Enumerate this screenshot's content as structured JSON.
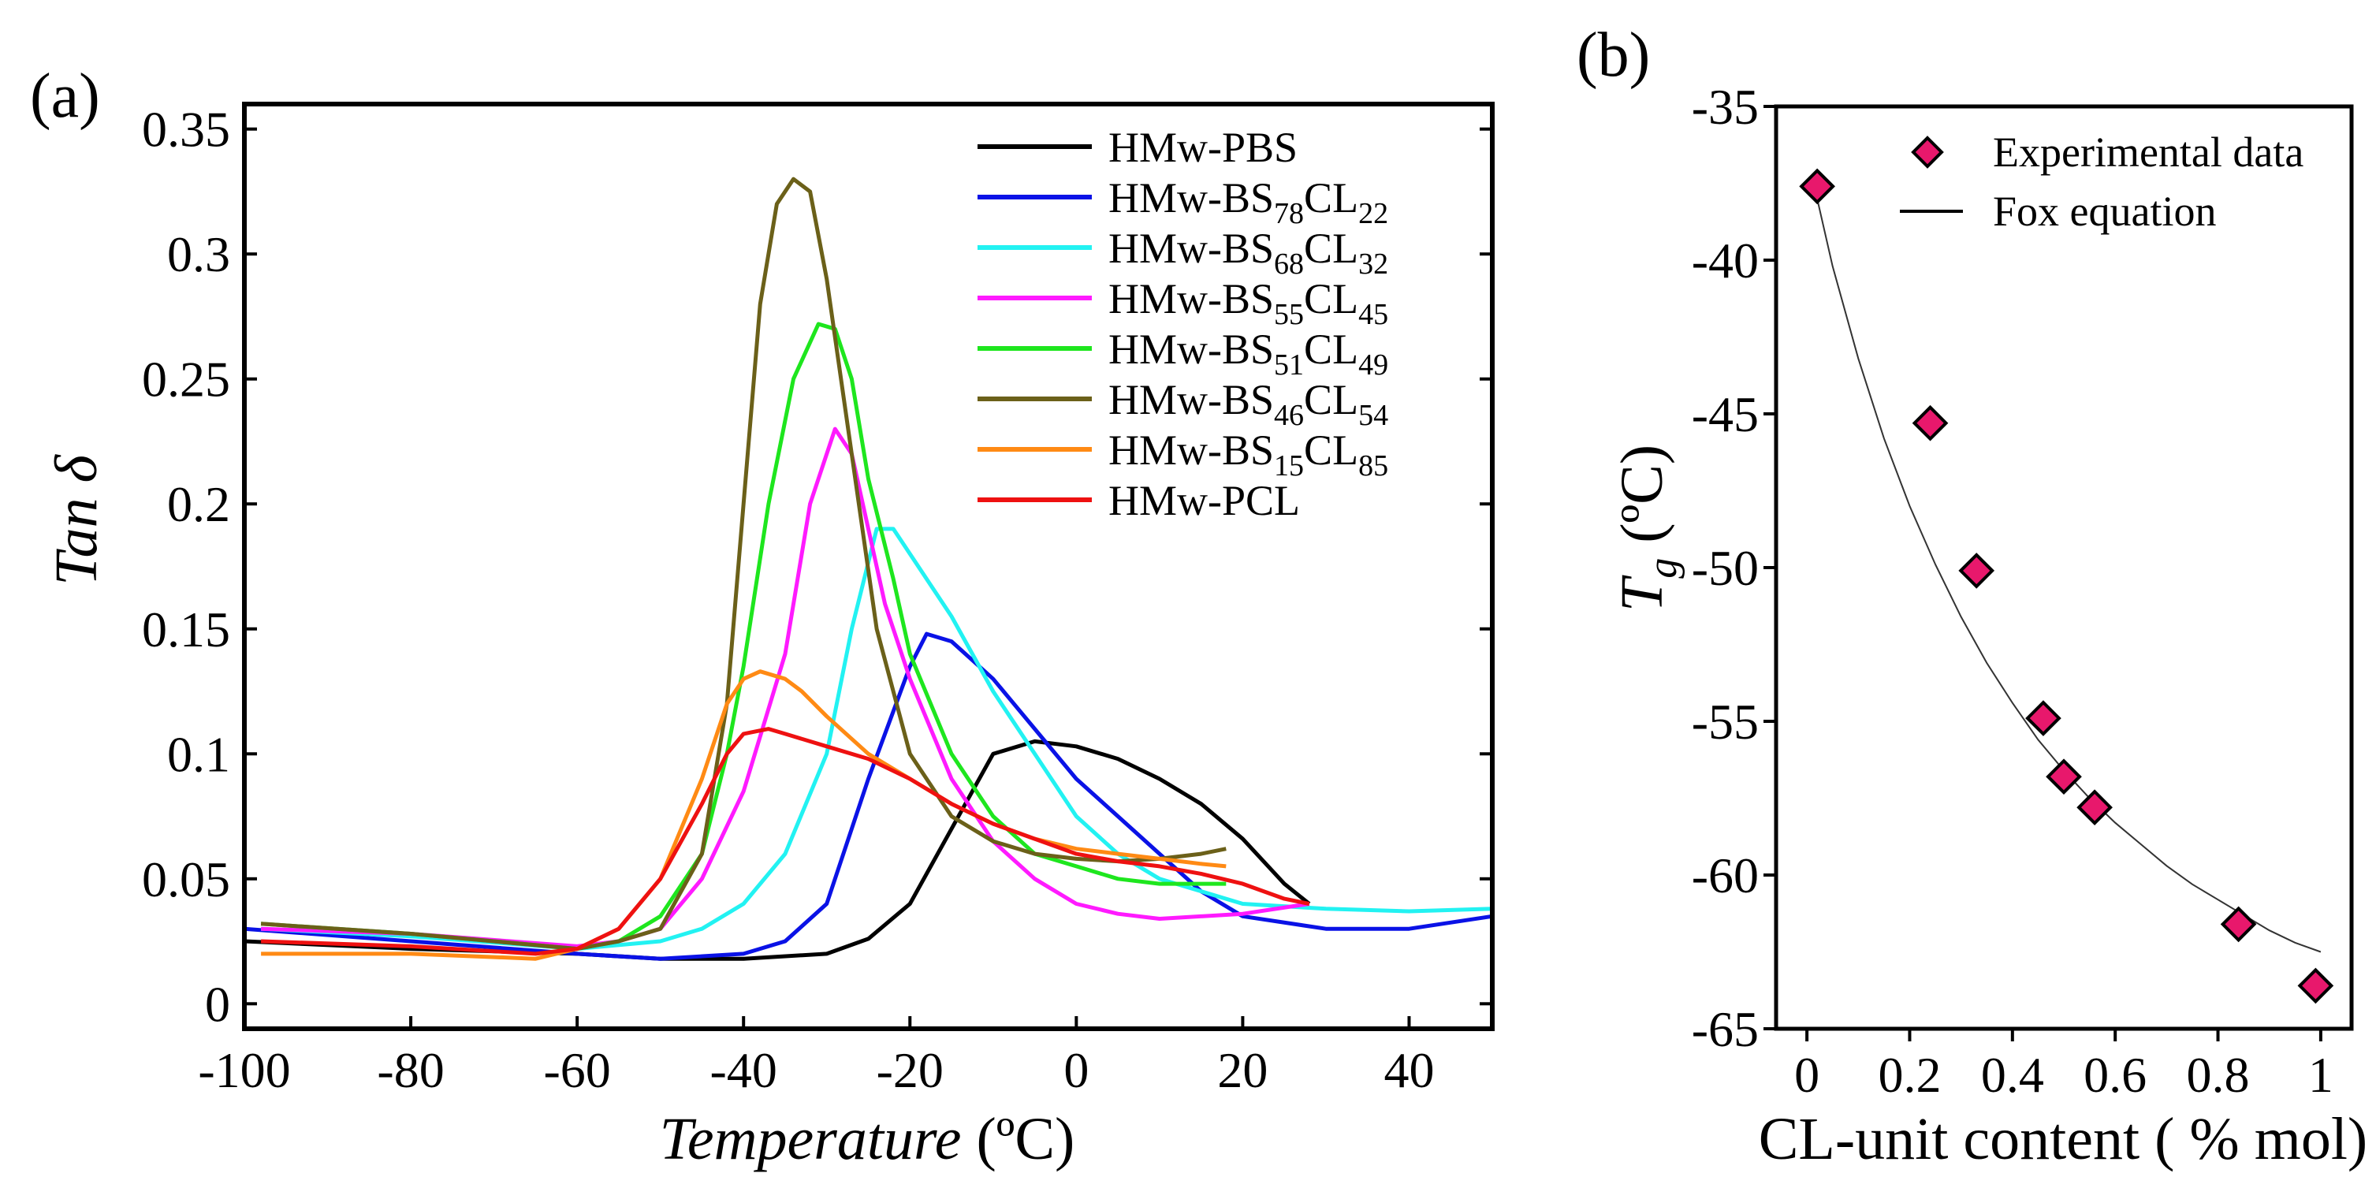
{
  "panel_a": {
    "label": "(a)",
    "xlabel_italic": "Temperature",
    "xlabel_unit": " (ºC)",
    "ylabel": "Tan δ"
  },
  "panel_b": {
    "label": "(b)",
    "xlabel": "CL-unit content ( % mol)",
    "ylabel_main": "T",
    "ylabel_sub": "g",
    "ylabel_unit": " (ºC)"
  },
  "colors": {
    "HMw-PBS": "#000000",
    "HMw-BS78CL22": "#0a12e6",
    "HMw-BS68CL32": "#22f2f2",
    "HMw-BS55CL45": "#ff1aff",
    "HMw-BS51CL49": "#1ee61e",
    "HMw-BS46CL54": "#6b6019",
    "HMw-BS15CL85": "#ff8a14",
    "HMw-PCL": "#ee1111",
    "marker_fill": "#e8186c"
  },
  "chart_data": [
    {
      "type": "line",
      "xlim": [
        -100,
        50
      ],
      "ylim": [
        -0.01,
        0.36
      ],
      "x_ticks": [
        "-100",
        "-80",
        "-60",
        "-40",
        "-20",
        "0",
        "20",
        "40"
      ],
      "x_tick_values": [
        -100,
        -80,
        -60,
        -40,
        -20,
        0,
        20,
        40
      ],
      "y_ticks": [
        "0",
        "0.05",
        "0.1",
        "0.15",
        "0.2",
        "0.25",
        "0.3",
        "0.35"
      ],
      "y_tick_values": [
        0,
        0.05,
        0.1,
        0.15,
        0.2,
        0.25,
        0.3,
        0.35
      ],
      "legend_position": "top-right",
      "series": [
        {
          "name": "HMw-PBS",
          "legend_main": "HMw-PBS",
          "legend_parts": [],
          "x": [
            -100,
            -80,
            -60,
            -50,
            -40,
            -30,
            -25,
            -20,
            -15,
            -10,
            -5,
            0,
            5,
            10,
            15,
            20,
            25,
            28
          ],
          "y": [
            0.025,
            0.022,
            0.02,
            0.018,
            0.018,
            0.02,
            0.026,
            0.04,
            0.07,
            0.1,
            0.105,
            0.103,
            0.098,
            0.09,
            0.08,
            0.066,
            0.048,
            0.04
          ]
        },
        {
          "name": "HMw-BS78CL22",
          "legend_main": "HMw-BS",
          "legend_parts": [
            "78",
            "CL",
            "22"
          ],
          "x": [
            -100,
            -80,
            -60,
            -50,
            -40,
            -35,
            -30,
            -25,
            -20,
            -18,
            -15,
            -10,
            -5,
            0,
            5,
            10,
            15,
            20,
            30,
            40,
            50
          ],
          "y": [
            0.03,
            0.025,
            0.02,
            0.018,
            0.02,
            0.025,
            0.04,
            0.09,
            0.135,
            0.148,
            0.145,
            0.13,
            0.11,
            0.09,
            0.075,
            0.06,
            0.045,
            0.035,
            0.03,
            0.03,
            0.035
          ]
        },
        {
          "name": "HMw-BS68CL32",
          "legend_main": "HMw-BS",
          "legend_parts": [
            "68",
            "CL",
            "32"
          ],
          "x": [
            -98,
            -80,
            -60,
            -50,
            -45,
            -40,
            -35,
            -30,
            -27,
            -24,
            -22,
            -20,
            -15,
            -10,
            -5,
            0,
            5,
            10,
            20,
            30,
            40,
            50
          ],
          "y": [
            0.03,
            0.027,
            0.022,
            0.025,
            0.03,
            0.04,
            0.06,
            0.1,
            0.15,
            0.19,
            0.19,
            0.18,
            0.155,
            0.125,
            0.1,
            0.075,
            0.06,
            0.05,
            0.04,
            0.038,
            0.037,
            0.038
          ]
        },
        {
          "name": "HMw-BS55CL45",
          "legend_main": "HMw-BS",
          "legend_parts": [
            "55",
            "CL",
            "45"
          ],
          "x": [
            -98,
            -80,
            -60,
            -55,
            -50,
            -45,
            -40,
            -35,
            -32,
            -29,
            -27,
            -25,
            -23,
            -20,
            -15,
            -10,
            -5,
            0,
            5,
            10,
            20,
            28
          ],
          "y": [
            0.03,
            0.028,
            0.023,
            0.025,
            0.03,
            0.05,
            0.085,
            0.14,
            0.2,
            0.23,
            0.22,
            0.19,
            0.16,
            0.13,
            0.09,
            0.065,
            0.05,
            0.04,
            0.036,
            0.034,
            0.036,
            0.04
          ]
        },
        {
          "name": "HMw-BS51CL49",
          "legend_main": "HMw-BS",
          "legend_parts": [
            "51",
            "CL",
            "49"
          ],
          "x": [
            -98,
            -80,
            -60,
            -55,
            -50,
            -45,
            -42,
            -40,
            -37,
            -34,
            -31,
            -29,
            -27,
            -25,
            -22,
            -20,
            -15,
            -10,
            -5,
            0,
            5,
            10,
            15,
            18
          ],
          "y": [
            0.032,
            0.028,
            0.022,
            0.025,
            0.035,
            0.06,
            0.1,
            0.135,
            0.2,
            0.25,
            0.272,
            0.27,
            0.25,
            0.21,
            0.17,
            0.14,
            0.1,
            0.075,
            0.06,
            0.055,
            0.05,
            0.048,
            0.048,
            0.048
          ]
        },
        {
          "name": "HMw-BS46CL54",
          "legend_main": "HMw-BS",
          "legend_parts": [
            "46",
            "CL",
            "54"
          ],
          "x": [
            -98,
            -80,
            -60,
            -55,
            -50,
            -45,
            -42,
            -40,
            -38,
            -36,
            -34,
            -32,
            -30,
            -27,
            -24,
            -20,
            -15,
            -10,
            -5,
            0,
            5,
            10,
            15,
            18
          ],
          "y": [
            0.032,
            0.028,
            0.022,
            0.025,
            0.03,
            0.06,
            0.12,
            0.2,
            0.28,
            0.32,
            0.33,
            0.325,
            0.29,
            0.22,
            0.15,
            0.1,
            0.075,
            0.065,
            0.06,
            0.058,
            0.057,
            0.058,
            0.06,
            0.062
          ]
        },
        {
          "name": "HMw-BS15CL85",
          "legend_main": "HMw-BS",
          "legend_parts": [
            "15",
            "CL",
            "85"
          ],
          "x": [
            -98,
            -80,
            -65,
            -60,
            -55,
            -50,
            -45,
            -42,
            -40,
            -38,
            -35,
            -33,
            -30,
            -25,
            -20,
            -15,
            -10,
            -5,
            0,
            5,
            10,
            15,
            18
          ],
          "y": [
            0.02,
            0.02,
            0.018,
            0.022,
            0.03,
            0.05,
            0.09,
            0.12,
            0.13,
            0.133,
            0.13,
            0.125,
            0.115,
            0.1,
            0.09,
            0.08,
            0.072,
            0.066,
            0.062,
            0.06,
            0.058,
            0.056,
            0.055
          ]
        },
        {
          "name": "HMw-PCL",
          "legend_main": "HMw-PCL",
          "legend_parts": [],
          "x": [
            -98,
            -80,
            -65,
            -60,
            -55,
            -50,
            -45,
            -42,
            -40,
            -37,
            -35,
            -30,
            -25,
            -20,
            -15,
            -10,
            -5,
            0,
            5,
            10,
            15,
            20,
            25,
            28
          ],
          "y": [
            0.025,
            0.023,
            0.02,
            0.022,
            0.03,
            0.05,
            0.08,
            0.1,
            0.108,
            0.11,
            0.108,
            0.103,
            0.098,
            0.09,
            0.08,
            0.072,
            0.066,
            0.06,
            0.057,
            0.055,
            0.052,
            0.048,
            0.042,
            0.04
          ]
        }
      ]
    },
    {
      "type": "scatter",
      "xlim": [
        -0.06,
        1.06
      ],
      "ylim": [
        -65,
        -35
      ],
      "x_ticks": [
        "0",
        "0.2",
        "0.4",
        "0.6",
        "0.8",
        "1"
      ],
      "x_tick_values": [
        0,
        0.2,
        0.4,
        0.6,
        0.8,
        1
      ],
      "y_ticks": [
        "-35",
        "-40",
        "-45",
        "-50",
        "-55",
        "-60",
        "-65"
      ],
      "y_tick_values": [
        -35,
        -40,
        -45,
        -50,
        -55,
        -60,
        -65
      ],
      "legend_position": "top-right",
      "series": [
        {
          "name": "Experimental data",
          "x": [
            0.02,
            0.24,
            0.33,
            0.46,
            0.5,
            0.56,
            0.84,
            0.99
          ],
          "y": [
            -37.6,
            -45.3,
            -50.1,
            -54.9,
            -56.8,
            -57.8,
            -61.6,
            -63.6
          ]
        },
        {
          "name": "Fox equation",
          "x": [
            0.02,
            0.05,
            0.1,
            0.15,
            0.2,
            0.25,
            0.3,
            0.35,
            0.4,
            0.45,
            0.5,
            0.55,
            0.6,
            0.65,
            0.7,
            0.75,
            0.8,
            0.85,
            0.9,
            0.95,
            1.0
          ],
          "y": [
            -38.0,
            -40.2,
            -43.2,
            -45.8,
            -48.0,
            -49.9,
            -51.6,
            -53.1,
            -54.4,
            -55.6,
            -56.6,
            -57.5,
            -58.3,
            -59.0,
            -59.7,
            -60.3,
            -60.8,
            -61.3,
            -61.8,
            -62.2,
            -62.5
          ]
        }
      ]
    }
  ]
}
